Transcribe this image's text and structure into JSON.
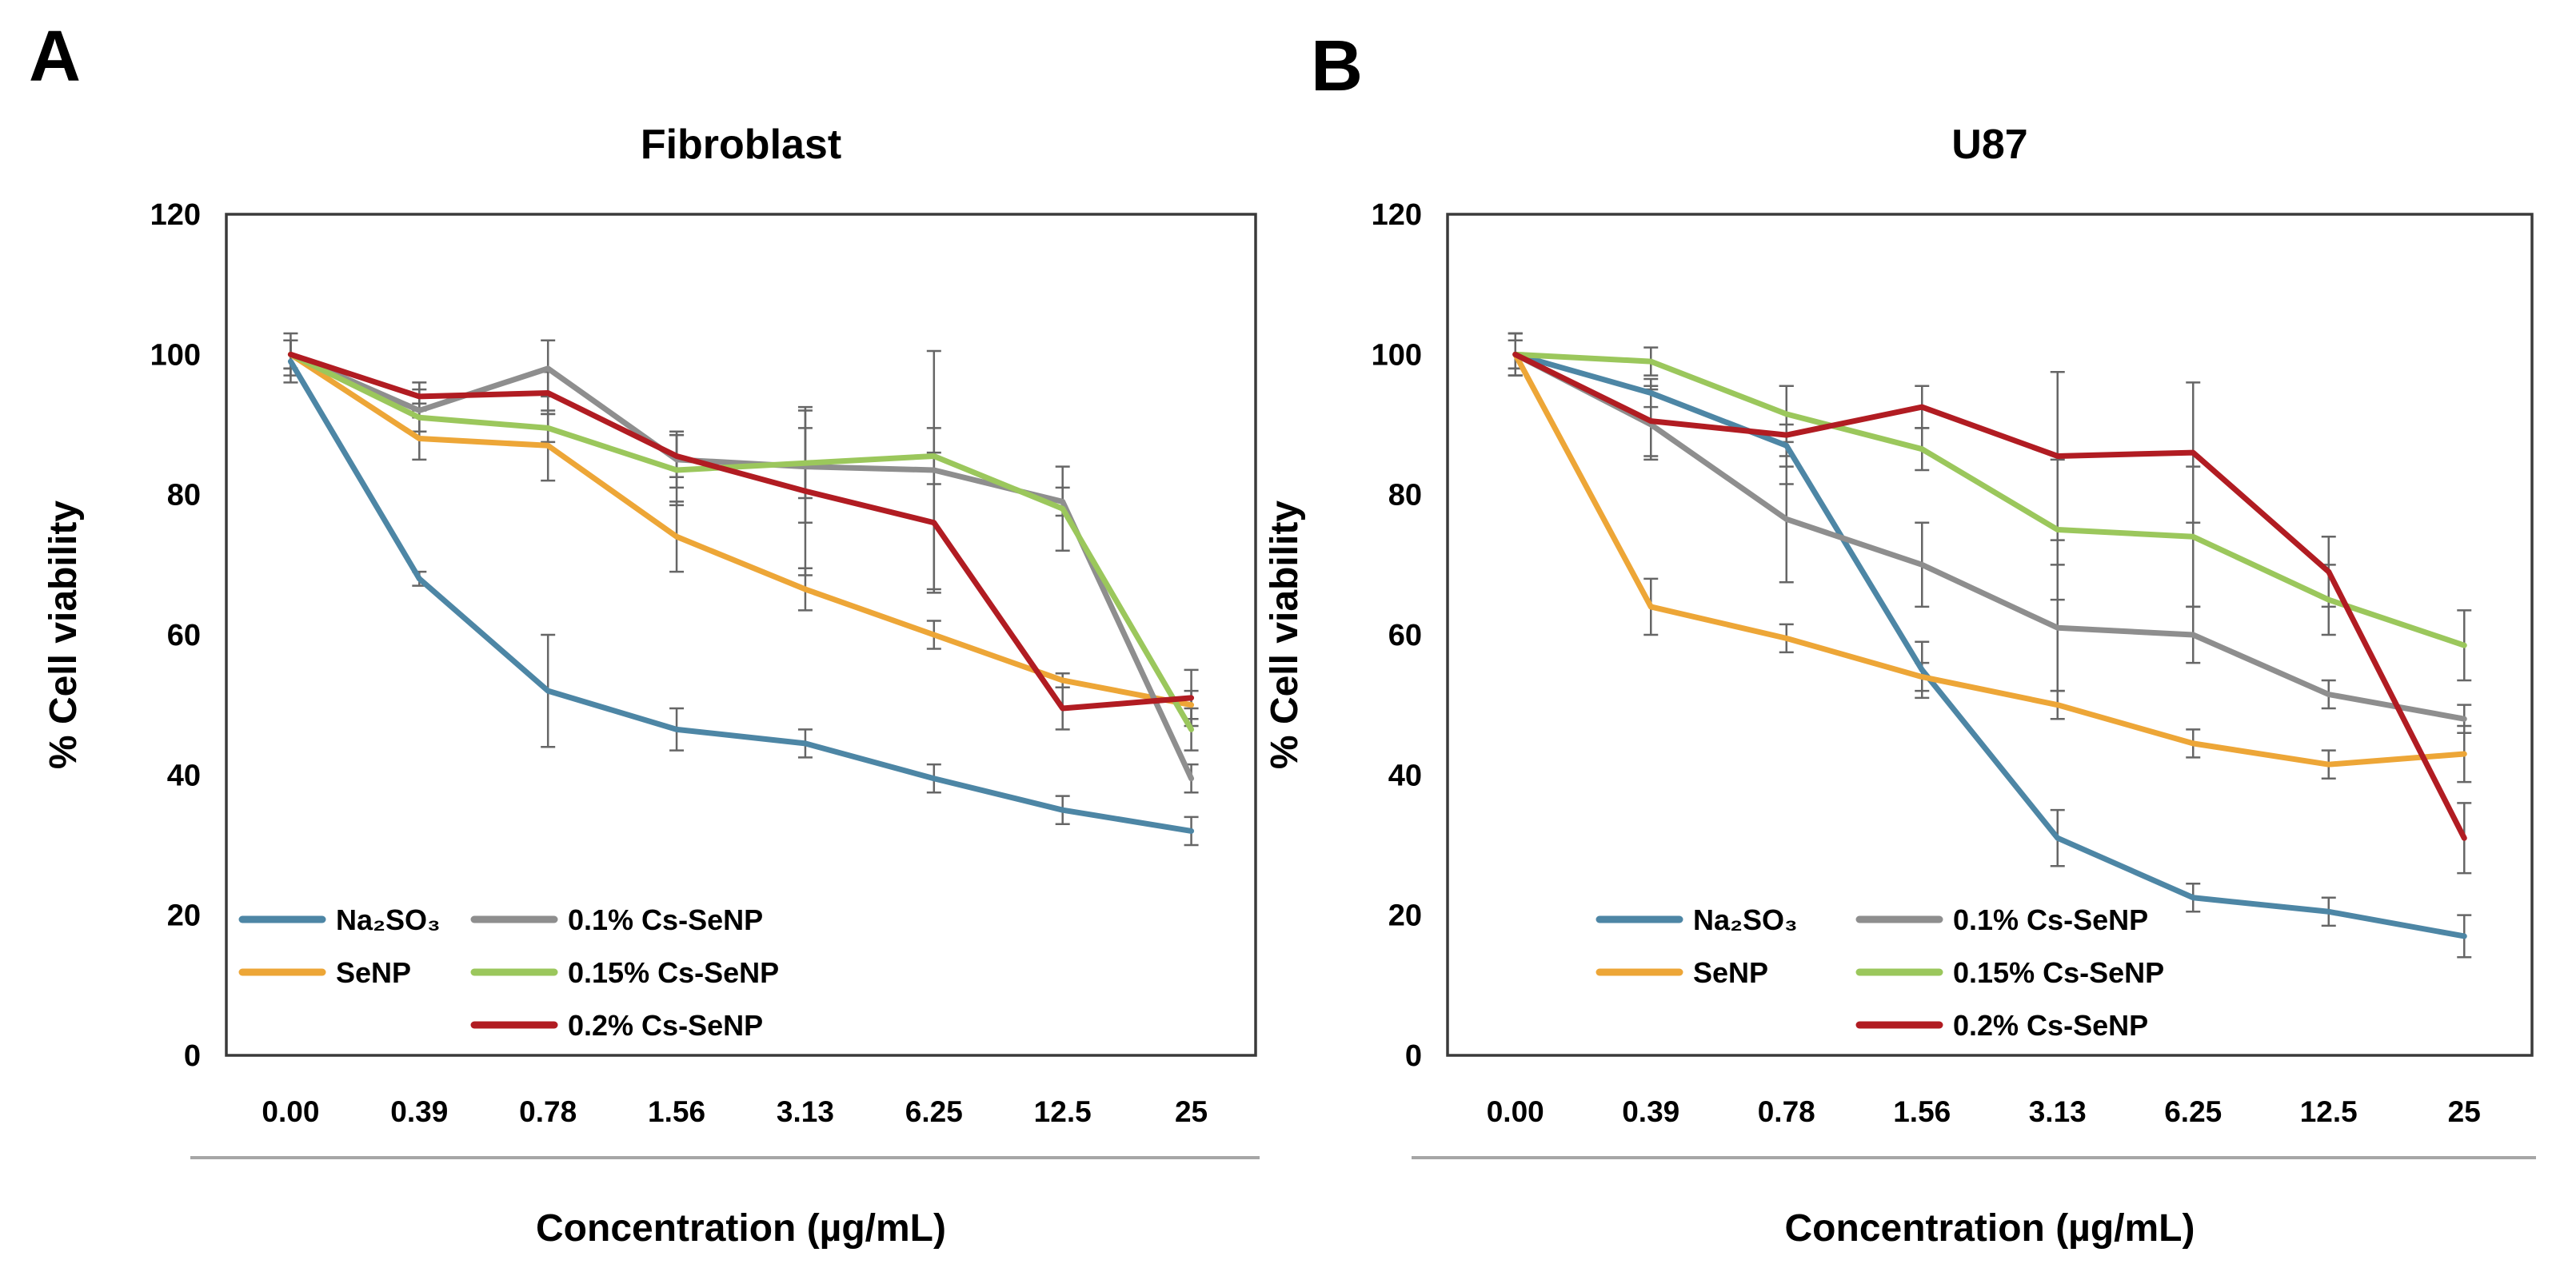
{
  "figure": {
    "background": "#ffffff",
    "text_color": "#000000",
    "axis_border_color": "#3a3a3a",
    "error_bar_color": "#666666",
    "x_separator_color": "#a6a6a6"
  },
  "panels": [
    {
      "letter": "A"
    },
    {
      "letter": "B"
    }
  ],
  "chart_data": [
    {
      "type": "line",
      "title": "Fibroblast",
      "xlabel": "Concentration (µg/mL)",
      "ylabel": "% Cell viability",
      "categories": [
        "0.00",
        "0.39",
        "0.78",
        "1.56",
        "3.13",
        "6.25",
        "12.5",
        "25"
      ],
      "ylim": [
        0,
        120
      ],
      "yticks": [
        0,
        20,
        40,
        60,
        80,
        100,
        120
      ],
      "grid": false,
      "legend_position": "inside-bottom",
      "series": [
        {
          "name": "Na₂SO₃",
          "color": "#4d86a5",
          "legend_col": 0,
          "values": [
            99,
            68,
            52,
            46.5,
            44.5,
            39.5,
            35,
            32
          ],
          "errors": [
            3,
            1,
            8,
            3,
            2,
            2,
            2,
            2
          ]
        },
        {
          "name": "SeNP",
          "color": "#eda637",
          "legend_col": 0,
          "values": [
            100,
            88,
            87,
            74,
            66.5,
            60,
            53.5,
            50
          ],
          "errors": [
            3,
            3,
            5,
            5,
            3,
            2,
            1,
            2
          ]
        },
        {
          "name": "0.1% Cs-SeNP",
          "color": "#8e8e8e",
          "legend_col": 1,
          "values": [
            100,
            92,
            98,
            85,
            84,
            83.5,
            79,
            39.5
          ],
          "errors": [
            2,
            3,
            4,
            4,
            8,
            17,
            2,
            2
          ]
        },
        {
          "name": "0.15% Cs-SeNP",
          "color": "#9bc75c",
          "legend_col": 1,
          "values": [
            100,
            91,
            89.5,
            83.5,
            84.5,
            85.5,
            78,
            46.5
          ],
          "errors": [
            2,
            2,
            2,
            5,
            5,
            4,
            6,
            3
          ]
        },
        {
          "name": "0.2% Cs-SeNP",
          "color": "#b11c22",
          "legend_col": 1,
          "values": [
            100,
            94,
            94.5,
            85.5,
            80.5,
            76,
            49.5,
            51
          ],
          "errors": [
            2,
            2,
            3,
            3,
            12,
            10,
            3,
            4
          ]
        }
      ]
    },
    {
      "type": "line",
      "title": "U87",
      "xlabel": "Concentration (µg/mL)",
      "ylabel": "% Cell viability",
      "categories": [
        "0.00",
        "0.39",
        "0.78",
        "1.56",
        "3.13",
        "6.25",
        "12.5",
        "25"
      ],
      "ylim": [
        0,
        120
      ],
      "yticks": [
        0,
        20,
        40,
        60,
        80,
        100,
        120
      ],
      "grid": false,
      "legend_position": "inside-bottom",
      "series": [
        {
          "name": "Na₂SO₃",
          "color": "#4d86a5",
          "legend_col": 0,
          "values": [
            100,
            94.5,
            87,
            55,
            31,
            22.5,
            20.5,
            17
          ],
          "errors": [
            3,
            2,
            3,
            4,
            4,
            2,
            2,
            3
          ]
        },
        {
          "name": "SeNP",
          "color": "#eda637",
          "legend_col": 0,
          "values": [
            100,
            64,
            59.5,
            54,
            50,
            44.5,
            41.5,
            43
          ],
          "errors": [
            3,
            4,
            2,
            2,
            2,
            2,
            2,
            4
          ]
        },
        {
          "name": "0.1% Cs-SeNP",
          "color": "#8e8e8e",
          "legend_col": 1,
          "values": [
            100,
            90,
            76.5,
            70,
            61,
            60,
            51.5,
            48
          ],
          "errors": [
            2,
            5,
            9,
            6,
            9,
            4,
            2,
            2
          ]
        },
        {
          "name": "0.15% Cs-SeNP",
          "color": "#9bc75c",
          "legend_col": 1,
          "values": [
            100,
            99,
            91.5,
            86.5,
            75,
            74,
            65,
            58.5
          ],
          "errors": [
            2,
            2,
            4,
            3,
            10,
            10,
            5,
            5
          ]
        },
        {
          "name": "0.2% Cs-SeNP",
          "color": "#b11c22",
          "legend_col": 1,
          "values": [
            100,
            90.5,
            88.5,
            92.5,
            85.5,
            86,
            69,
            31
          ],
          "errors": [
            3,
            5,
            7,
            3,
            12,
            10,
            5,
            5
          ]
        }
      ]
    }
  ]
}
